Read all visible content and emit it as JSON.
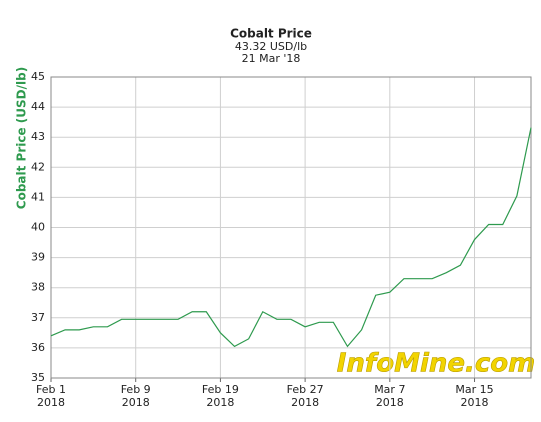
{
  "chart_data": {
    "type": "line",
    "title": "Cobalt Price",
    "subtitle": "43.32 USD/lb",
    "date_label": "21 Mar '18",
    "y_label": "Cobalt Price (USD/lb)",
    "watermark": "InfoMine.com",
    "categories": [
      [
        "Feb 1",
        "2018"
      ],
      null,
      null,
      null,
      null,
      null,
      [
        "Feb 9",
        "2018"
      ],
      null,
      null,
      null,
      null,
      null,
      [
        "Feb 19",
        "2018"
      ],
      null,
      null,
      null,
      null,
      null,
      [
        "Feb 27",
        "2018"
      ],
      null,
      null,
      null,
      null,
      null,
      [
        "Mar 7",
        "2018"
      ],
      null,
      null,
      null,
      null,
      null,
      [
        "Mar 15",
        "2018"
      ],
      null,
      null,
      null,
      null
    ],
    "series": [
      {
        "name": "Cobalt Price",
        "color": "#2e9a4e",
        "values": [
          36.4,
          36.6,
          36.6,
          36.7,
          36.7,
          36.95,
          36.95,
          36.95,
          36.95,
          36.95,
          37.2,
          37.2,
          36.5,
          36.05,
          36.3,
          37.2,
          36.95,
          36.95,
          36.7,
          36.85,
          36.85,
          36.05,
          36.6,
          37.75,
          37.85,
          38.3,
          38.3,
          38.3,
          38.5,
          38.75,
          39.6,
          40.1,
          40.1,
          41.05,
          43.32
        ]
      }
    ],
    "ylim": [
      35,
      45
    ],
    "yticks": [
      35,
      36,
      37,
      38,
      39,
      40,
      41,
      42,
      43,
      44,
      45
    ],
    "grid": true
  }
}
